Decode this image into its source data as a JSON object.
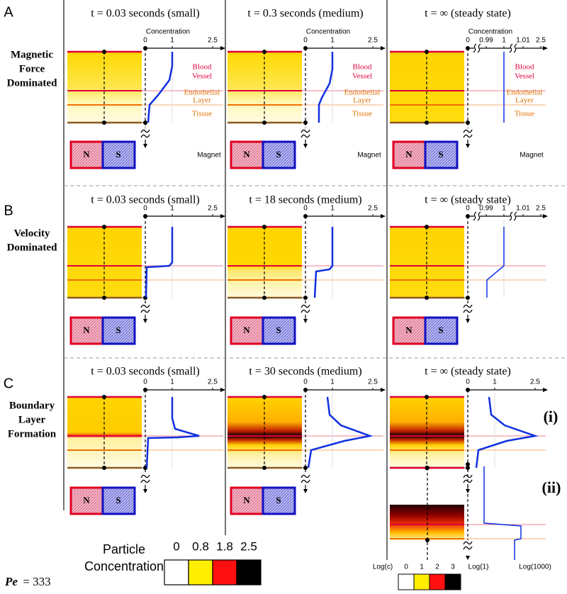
{
  "rows": [
    {
      "letter": "A",
      "heading": [
        "Magnetic",
        "Force",
        "Dominated"
      ],
      "panels": [
        {
          "title": "t = 0.03 seconds (small)",
          "ticks": [
            "0",
            "1",
            "2.5"
          ],
          "axis_label": "Concentration",
          "vessel": [
            "Blood",
            "Vessel"
          ],
          "endothelial": [
            "Endothelial",
            "Layer"
          ],
          "tissue": "Tissue",
          "magnet": {
            "north": "N",
            "south": "S",
            "label": "Magnet"
          }
        },
        {
          "title": "t = 0.3 seconds (medium)",
          "ticks": [
            "0",
            "1",
            "2.5"
          ],
          "axis_label": "Concentration",
          "vessel": [
            "Blood",
            "Vessel"
          ],
          "endothelial": [
            "Endothelial",
            "Layer"
          ],
          "tissue": "Tissue",
          "magnet": {
            "north": "N",
            "south": "S",
            "label": "Magnet"
          }
        },
        {
          "title": "t = ∞ (steady state)",
          "ticks": [
            "0",
            "0.99",
            "1",
            "1.01",
            "2.5"
          ],
          "axis_label": "Concentration",
          "vessel": [
            "Blood",
            "Vessel"
          ],
          "endothelial": [
            "Endothelial",
            "Layer"
          ],
          "tissue": "Tissue",
          "magnet": {
            "north": "N",
            "south": "S",
            "label": "Magnet"
          }
        }
      ]
    },
    {
      "letter": "B",
      "heading": [
        "Velocity",
        "Dominated"
      ],
      "panels": [
        {
          "title": "t = 0.03 seconds (small)",
          "ticks": [
            "0",
            "1",
            "2.5"
          ],
          "magnet": {
            "north": "N",
            "south": "S"
          }
        },
        {
          "title": "t = 18 seconds (medium)",
          "ticks": [
            "0",
            "1",
            "2.5"
          ],
          "magnet": {
            "north": "N",
            "south": "S"
          }
        },
        {
          "title": "t = ∞ (steady state)",
          "ticks": [
            "0",
            "0.99",
            "1",
            "1.01",
            "2.5"
          ],
          "magnet": {
            "north": "N",
            "south": "S"
          }
        }
      ]
    },
    {
      "letter": "C",
      "heading": [
        "Boundary",
        "Layer",
        "Formation"
      ],
      "panels": [
        {
          "title": "t = 0.03 seconds (small)",
          "ticks": [
            "0",
            "1",
            "2.5"
          ],
          "magnet": {
            "north": "N",
            "south": "S"
          }
        },
        {
          "title": "t = 30 seconds (medium)",
          "ticks": [
            "0",
            "1",
            "2.5"
          ],
          "magnet": {
            "north": "N",
            "south": "S"
          }
        },
        {
          "title": "t = ∞ (steady state)",
          "ticks": [
            "0",
            "1",
            "2.5"
          ]
        }
      ]
    }
  ],
  "inset": {
    "label_i": "(i)",
    "label_ii": "(ii)",
    "axis_left": "Log(1)",
    "axis_right": "Log(1000)",
    "scale_title": "Log(c)",
    "scale_ticks": [
      "0",
      "1",
      "2",
      "3"
    ]
  },
  "legend": {
    "title": [
      "Particle",
      "Concentration"
    ],
    "ticks": [
      "0",
      "0.8",
      "1.8",
      "2.5"
    ]
  },
  "footer": {
    "symbol": "Pe",
    "relation": "= 333"
  }
}
